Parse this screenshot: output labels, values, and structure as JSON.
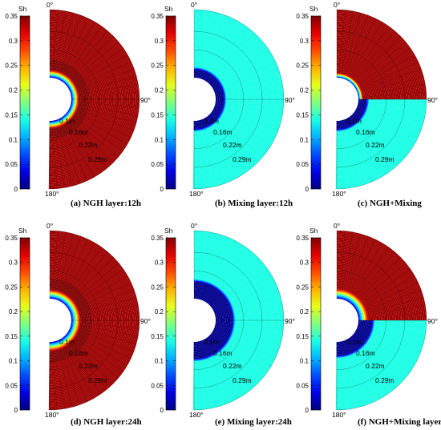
{
  "chart_data": [
    {
      "type": "heatmap",
      "caption": "(a) NGH layer:12h",
      "colorbar": {
        "title": "Sh",
        "range": [
          0,
          0.35
        ],
        "ticks": [
          "0",
          "0.05",
          "0.1",
          "0.15",
          "0.2",
          "0.25",
          "0.3",
          "0.35"
        ]
      },
      "angle_labels": [
        "0°",
        "90°",
        "180°"
      ],
      "radius_labels": [
        "0.1m",
        "0.16m",
        "0.22m",
        "0.29m"
      ],
      "field": {
        "pattern": "ngh",
        "inner_radius_m": 0.07,
        "outer_radius_m": 0.29,
        "front_radius_m": 0.095,
        "background_sh": 0.34
      }
    },
    {
      "type": "heatmap",
      "caption": "(b) Mixing layer:12h",
      "colorbar": {
        "title": "Sh",
        "range": [
          0,
          0.35
        ],
        "ticks": [
          "0",
          "0.05",
          "0.1",
          "0.15",
          "0.2",
          "0.25",
          "0.3",
          "0.35"
        ]
      },
      "angle_labels": [
        "0°",
        "90°",
        "180°"
      ],
      "radius_labels": [
        "0.1m",
        "0.16m",
        "0.22m",
        "0.29m"
      ],
      "field": {
        "pattern": "mixing",
        "inner_radius_m": 0.07,
        "outer_radius_m": 0.29,
        "front_radius_m": 0.097,
        "background_sh": 0.14
      }
    },
    {
      "type": "heatmap",
      "caption": "(c) NGH+Mixing",
      "colorbar": {
        "title": "Sh",
        "range": [
          0,
          0.35
        ],
        "ticks": [
          "0",
          "0.05",
          "0.1",
          "0.15",
          "0.2",
          "0.25",
          "0.3",
          "0.35"
        ]
      },
      "angle_labels": [
        "0°",
        "90°",
        "180°"
      ],
      "radius_labels": [
        "0.1m",
        "0.16m",
        "0.22m",
        "0.29m"
      ],
      "field": {
        "pattern": "combined",
        "inner_radius_m": 0.07,
        "outer_radius_m": 0.29,
        "front_radius_m": 0.097,
        "background_sh": 0.34
      }
    },
    {
      "type": "heatmap",
      "caption": "(d) NGH layer:24h",
      "colorbar": {
        "title": "Sh",
        "range": [
          0,
          0.35
        ],
        "ticks": [
          "0",
          "0.05",
          "0.1",
          "0.15",
          "0.2",
          "0.25",
          "0.3",
          "0.35"
        ]
      },
      "angle_labels": [
        "0°",
        "90°",
        "180°"
      ],
      "radius_labels": [
        "0.1m",
        "0.16m",
        "0.22m",
        "0.29m"
      ],
      "field": {
        "pattern": "ngh",
        "inner_radius_m": 0.07,
        "outer_radius_m": 0.29,
        "front_radius_m": 0.1,
        "background_sh": 0.34
      }
    },
    {
      "type": "heatmap",
      "caption": "(e) Mixing layer:24h",
      "colorbar": {
        "title": "Sh",
        "range": [
          0,
          0.35
        ],
        "ticks": [
          "0",
          "0.05",
          "0.1",
          "0.15",
          "0.2",
          "0.25",
          "0.3",
          "0.35"
        ]
      },
      "angle_labels": [
        "0°",
        "90°",
        "180°"
      ],
      "radius_labels": [
        "0.1m",
        "0.16m",
        "0.22m",
        "0.29m"
      ],
      "field": {
        "pattern": "mixing",
        "inner_radius_m": 0.07,
        "outer_radius_m": 0.29,
        "front_radius_m": 0.125,
        "background_sh": 0.14
      }
    },
    {
      "type": "heatmap",
      "caption": "(f) NGH+Mixing layer:24h",
      "colorbar": {
        "title": "Sh",
        "range": [
          0,
          0.35
        ],
        "ticks": [
          "0",
          "0.05",
          "0.1",
          "0.15",
          "0.2",
          "0.25",
          "0.3",
          "0.35"
        ]
      },
      "angle_labels": [
        "0°",
        "90°",
        "180°"
      ],
      "radius_labels": [
        "0.1m",
        "0.16m",
        "0.22m",
        "0.29m"
      ],
      "field": {
        "pattern": "combined",
        "inner_radius_m": 0.07,
        "outer_radius_m": 0.29,
        "front_radius_m": 0.115,
        "background_sh": 0.34
      }
    }
  ]
}
